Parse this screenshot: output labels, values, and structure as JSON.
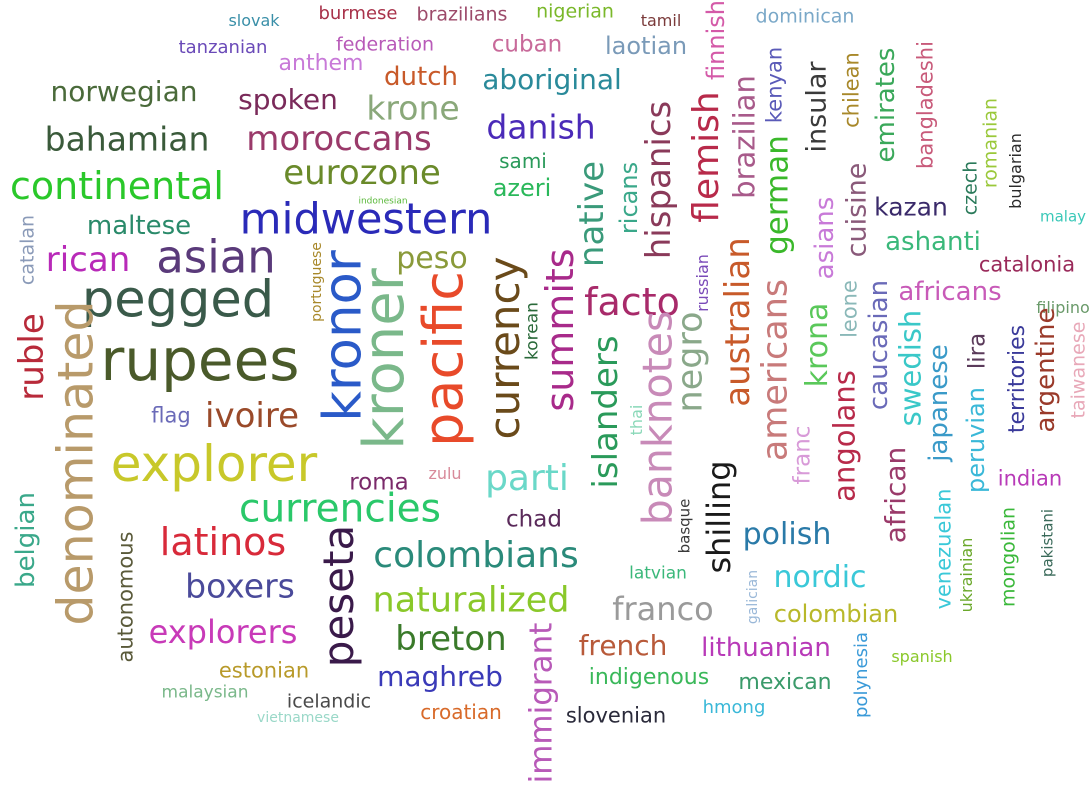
{
  "words": [
    {
      "text": "slovak",
      "color": "#3a8fa8"
    },
    {
      "text": "burmese",
      "color": "#a8324a"
    },
    {
      "text": "brazilians",
      "color": "#9c4a6a"
    },
    {
      "text": "nigerian",
      "color": "#7ab82a"
    },
    {
      "text": "tamil",
      "color": "#7a3a3a"
    },
    {
      "text": "finnish",
      "color": "#d45aa8"
    },
    {
      "text": "dominican",
      "color": "#7aa8c8"
    },
    {
      "text": "tanzanian",
      "color": "#6a4ab8"
    },
    {
      "text": "federation",
      "color": "#b85ab8"
    },
    {
      "text": "cuban",
      "color": "#c86a9a"
    },
    {
      "text": "laotian",
      "color": "#7a9ab8"
    },
    {
      "text": "anthem",
      "color": "#c87ad8"
    },
    {
      "text": "dutch",
      "color": "#c85a2a"
    },
    {
      "text": "aboriginal",
      "color": "#2a8a9a"
    },
    {
      "text": "kenyan",
      "color": "#5a5ab8"
    },
    {
      "text": "norwegian",
      "color": "#4a6a3a"
    },
    {
      "text": "spoken",
      "color": "#7a2a5a"
    },
    {
      "text": "krone",
      "color": "#8aa87a"
    },
    {
      "text": "danish",
      "color": "#4a2ab8"
    },
    {
      "text": "hispanics",
      "color": "#8a3a5a"
    },
    {
      "text": "flemish",
      "color": "#b82a4a"
    },
    {
      "text": "brazilian",
      "color": "#a85a8a"
    },
    {
      "text": "insular",
      "color": "#3a3a3a"
    },
    {
      "text": "chilean",
      "color": "#a8882a"
    },
    {
      "text": "emirates",
      "color": "#3aa85a"
    },
    {
      "text": "bangladeshi",
      "color": "#c85a7a"
    },
    {
      "text": "romanian",
      "color": "#9ac83a"
    },
    {
      "text": "bahamian",
      "color": "#3a5a3a"
    },
    {
      "text": "moroccans",
      "color": "#9a3a6a"
    },
    {
      "text": "sami",
      "color": "#2a9a5a"
    },
    {
      "text": "german",
      "color": "#3ab82a"
    },
    {
      "text": "bulgarian",
      "color": "#2a2a2a"
    },
    {
      "text": "continental",
      "color": "#2ac82a"
    },
    {
      "text": "eurozone",
      "color": "#6a8a2a"
    },
    {
      "text": "azeri",
      "color": "#2ab85a"
    },
    {
      "text": "native",
      "color": "#3a9a7a"
    },
    {
      "text": "ricans",
      "color": "#3aa88a"
    },
    {
      "text": "cuisine",
      "color": "#8a5a7a"
    },
    {
      "text": "czech",
      "color": "#2a7a5a"
    },
    {
      "text": "indonesian",
      "color": "#5ab83a"
    },
    {
      "text": "asians",
      "color": "#c87ad8"
    },
    {
      "text": "kazan",
      "color": "#3a2a6a"
    },
    {
      "text": "malay",
      "color": "#3ac8b8"
    },
    {
      "text": "catalan",
      "color": "#8a9ab8"
    },
    {
      "text": "maltese",
      "color": "#2a8a6a"
    },
    {
      "text": "midwestern",
      "color": "#2a2ab8"
    },
    {
      "text": "ashanti",
      "color": "#3ab87a"
    },
    {
      "text": "rican",
      "color": "#b82ab8"
    },
    {
      "text": "asian",
      "color": "#5a3a7a"
    },
    {
      "text": "portuguese",
      "color": "#a8882a"
    },
    {
      "text": "peso",
      "color": "#8a9a3a"
    },
    {
      "text": "catalonia",
      "color": "#9a2a5a"
    },
    {
      "text": "australian",
      "color": "#c85a2a"
    },
    {
      "text": "russian",
      "color": "#7a4ab8"
    },
    {
      "text": "pegged",
      "color": "#3a5a4a"
    },
    {
      "text": "africans",
      "color": "#c85ab8"
    },
    {
      "text": "facto",
      "color": "#a82a6a"
    },
    {
      "text": "kronor",
      "color": "#2a5ac8"
    },
    {
      "text": "currency",
      "color": "#6a4a1a"
    },
    {
      "text": "summits",
      "color": "#a82a8a"
    },
    {
      "text": "leone",
      "color": "#8ab8b8"
    },
    {
      "text": "filipino",
      "color": "#6a9a6a"
    },
    {
      "text": "ruble",
      "color": "#b82a3a"
    },
    {
      "text": "americans",
      "color": "#c87a7a"
    },
    {
      "text": "korean",
      "color": "#2a6a3a"
    },
    {
      "text": "kroner",
      "color": "#7ab88a"
    },
    {
      "text": "pacific",
      "color": "#e84a2a"
    },
    {
      "text": "caucasian",
      "color": "#6a6ab8"
    },
    {
      "text": "krona",
      "color": "#5ac85a"
    },
    {
      "text": "territories",
      "color": "#3a3a9a"
    },
    {
      "text": "argentine",
      "color": "#9a3a2a"
    },
    {
      "text": "rupees",
      "color": "#4a5a2a"
    },
    {
      "text": "denominated",
      "color": "#b89a6a"
    },
    {
      "text": "islanders",
      "color": "#2a9a5a"
    },
    {
      "text": "banknotes",
      "color": "#c88ab8"
    },
    {
      "text": "negro",
      "color": "#8aa88a"
    },
    {
      "text": "swedish",
      "color": "#3ac8c8"
    },
    {
      "text": "japanese",
      "color": "#3a9ac8"
    },
    {
      "text": "lira",
      "color": "#5a3a5a"
    },
    {
      "text": "taiwanese",
      "color": "#e8a8b8"
    },
    {
      "text": "flag",
      "color": "#6a6ab8"
    },
    {
      "text": "ivoire",
      "color": "#9a4a2a"
    },
    {
      "text": "thai",
      "color": "#8ad8b8"
    },
    {
      "text": "angolans",
      "color": "#b82a4a"
    },
    {
      "text": "franc",
      "color": "#d89ad8"
    },
    {
      "text": "explorer",
      "color": "#c8c82a"
    },
    {
      "text": "african",
      "color": "#9a3a6a"
    },
    {
      "text": "peruvian",
      "color": "#3ab8d8"
    },
    {
      "text": "indian",
      "color": "#b83ab8"
    },
    {
      "text": "zulu",
      "color": "#d88a9a"
    },
    {
      "text": "roma",
      "color": "#7a2a6a"
    },
    {
      "text": "parti",
      "color": "#6ad8c8"
    },
    {
      "text": "belgian",
      "color": "#3aa88a"
    },
    {
      "text": "currencies",
      "color": "#2ac86a"
    },
    {
      "text": "shilling",
      "color": "#1a1a1a"
    },
    {
      "text": "chad",
      "color": "#5a2a5a"
    },
    {
      "text": "autonomous",
      "color": "#5a5a3a"
    },
    {
      "text": "latinos",
      "color": "#d82a3a"
    },
    {
      "text": "basque",
      "color": "#3a3a3a"
    },
    {
      "text": "polish",
      "color": "#2a7aa8"
    },
    {
      "text": "venezuelan",
      "color": "#3ac8d8"
    },
    {
      "text": "mongolian",
      "color": "#3ab83a"
    },
    {
      "text": "pakistani",
      "color": "#3a6a5a"
    },
    {
      "text": "ukrainian",
      "color": "#6aa82a"
    },
    {
      "text": "colombians",
      "color": "#2a8a7a"
    },
    {
      "text": "peseta",
      "color": "#3a1a4a"
    },
    {
      "text": "boxers",
      "color": "#4a4a9a"
    },
    {
      "text": "nordic",
      "color": "#3ac8d8"
    },
    {
      "text": "latvian",
      "color": "#3ab87a"
    },
    {
      "text": "galician",
      "color": "#9ab8d8"
    },
    {
      "text": "naturalized",
      "color": "#8ac82a"
    },
    {
      "text": "franco",
      "color": "#9a9a9a"
    },
    {
      "text": "colombian",
      "color": "#b8b82a"
    },
    {
      "text": "explorers",
      "color": "#c83ab8"
    },
    {
      "text": "breton",
      "color": "#3a7a2a"
    },
    {
      "text": "immigrant",
      "color": "#b85ab8"
    },
    {
      "text": "french",
      "color": "#b85a3a"
    },
    {
      "text": "lithuanian",
      "color": "#b83ab8"
    },
    {
      "text": "polynesia",
      "color": "#3a9ad8"
    },
    {
      "text": "spanish",
      "color": "#8ac82a"
    },
    {
      "text": "estonian",
      "color": "#b89a2a"
    },
    {
      "text": "maghreb",
      "color": "#3a3ab8"
    },
    {
      "text": "indigenous",
      "color": "#3ab85a"
    },
    {
      "text": "mexican",
      "color": "#3a9a6a"
    },
    {
      "text": "malaysian",
      "color": "#7ab88a"
    },
    {
      "text": "icelandic",
      "color": "#4a4a4a"
    },
    {
      "text": "hmong",
      "color": "#3ab8d8"
    },
    {
      "text": "vietnamese",
      "color": "#9ad8c8"
    },
    {
      "text": "croatian",
      "color": "#d86a2a"
    },
    {
      "text": "slovenian",
      "color": "#2a2a3a"
    }
  ]
}
